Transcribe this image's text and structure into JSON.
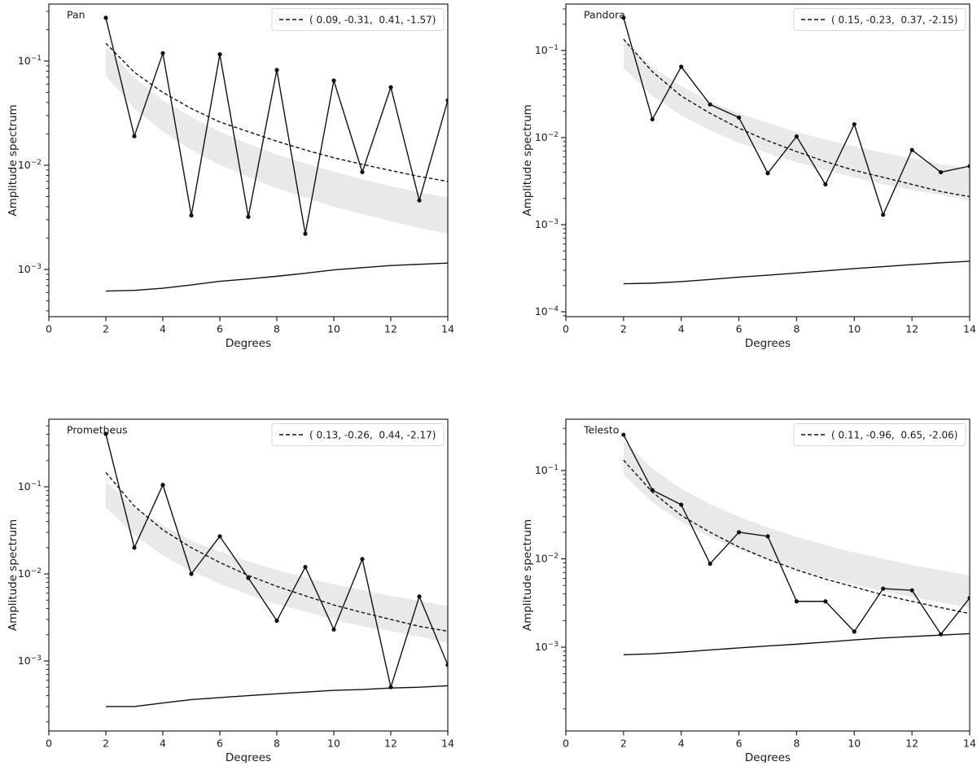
{
  "figure": {
    "background_color": "#ffffff",
    "line_color": "#111111",
    "band_color": "#e9e9e9",
    "legend_border_color": "#d6d6d6",
    "legend_background": "#ffffff",
    "xlabel": "Degrees",
    "ylabel": "Amplitude spectrum",
    "x_ticks": [
      0,
      2,
      4,
      6,
      8,
      10,
      12,
      14
    ],
    "xlim": [
      0,
      14
    ]
  },
  "chart_data": [
    {
      "type": "line",
      "id": "pan",
      "title": "Pan",
      "legend_label": "( 0.09, -0.31,  0.41, -1.57)",
      "xlabel": "Degrees",
      "ylabel": "Amplitude spectrum",
      "xlim": [
        0,
        14
      ],
      "ylim": [
        0.00035,
        0.35
      ],
      "ytick_exponents": [
        -1,
        -2,
        -3
      ],
      "x": [
        2,
        3,
        4,
        5,
        6,
        7,
        8,
        9,
        10,
        11,
        12,
        13,
        14
      ],
      "amplitude": [
        0.26,
        0.019,
        0.119,
        0.0033,
        0.116,
        0.0032,
        0.082,
        0.0022,
        0.065,
        0.0086,
        0.056,
        0.0046,
        0.042
      ],
      "fit_dashed": [
        0.148,
        0.078,
        0.05,
        0.035,
        0.026,
        0.021,
        0.017,
        0.014,
        0.0118,
        0.0102,
        0.0089,
        0.0078,
        0.007
      ],
      "band_upper": [
        0.138,
        0.069,
        0.042,
        0.029,
        0.021,
        0.016,
        0.0127,
        0.0104,
        0.0087,
        0.0073,
        0.0063,
        0.0055,
        0.0049
      ],
      "band_lower": [
        0.072,
        0.035,
        0.021,
        0.014,
        0.0101,
        0.0077,
        0.006,
        0.0049,
        0.004,
        0.0034,
        0.0029,
        0.0025,
        0.0022
      ],
      "noise": [
        0.00062,
        0.00063,
        0.00066,
        0.00071,
        0.00077,
        0.00081,
        0.00086,
        0.00092,
        0.00099,
        0.00104,
        0.00109,
        0.00112,
        0.00115
      ]
    },
    {
      "type": "line",
      "id": "pandora",
      "title": "Pandora",
      "legend_label": "( 0.15, -0.23,  0.37, -2.15)",
      "xlabel": "Degrees",
      "ylabel": "Amplitude spectrum",
      "xlim": [
        0,
        14
      ],
      "ylim": [
        8.8e-05,
        0.34
      ],
      "ytick_exponents": [
        -1,
        -2,
        -3,
        -4
      ],
      "x": [
        2,
        3,
        4,
        5,
        6,
        7,
        8,
        9,
        10,
        11,
        12,
        13,
        14
      ],
      "amplitude": [
        0.238,
        0.0162,
        0.065,
        0.024,
        0.017,
        0.0039,
        0.0103,
        0.0029,
        0.0142,
        0.0013,
        0.0072,
        0.004,
        0.0047
      ],
      "fit_dashed": [
        0.135,
        0.057,
        0.03,
        0.019,
        0.0128,
        0.0092,
        0.0069,
        0.0053,
        0.0042,
        0.0035,
        0.0029,
        0.0024,
        0.0021
      ],
      "band_upper": [
        0.13,
        0.064,
        0.039,
        0.026,
        0.019,
        0.0147,
        0.0116,
        0.0095,
        0.0079,
        0.0067,
        0.0058,
        0.005,
        0.0044
      ],
      "band_lower": [
        0.063,
        0.03,
        0.018,
        0.0121,
        0.0087,
        0.0066,
        0.0052,
        0.0042,
        0.0035,
        0.0029,
        0.0025,
        0.0022,
        0.0019
      ],
      "noise": [
        0.00021,
        0.000213,
        0.000222,
        0.000235,
        0.00025,
        0.000263,
        0.000278,
        0.000295,
        0.000313,
        0.00033,
        0.000348,
        0.000365,
        0.00038
      ]
    },
    {
      "type": "line",
      "id": "prometheus",
      "title": "Prometheus",
      "legend_label": "( 0.13, -0.26,  0.44, -2.17)",
      "xlabel": "Degrees",
      "ylabel": "Amplitude spectrum",
      "xlim": [
        0,
        14
      ],
      "ylim": [
        0.00016,
        0.6
      ],
      "ytick_exponents": [
        -1,
        -2,
        -3
      ],
      "x": [
        2,
        3,
        4,
        5,
        6,
        7,
        8,
        9,
        10,
        11,
        12,
        13,
        14
      ],
      "amplitude": [
        0.405,
        0.02,
        0.105,
        0.01,
        0.027,
        0.009,
        0.0029,
        0.012,
        0.0023,
        0.0148,
        0.0005,
        0.0055,
        0.0009
      ],
      "fit_dashed": [
        0.146,
        0.06,
        0.032,
        0.02,
        0.0135,
        0.0096,
        0.0072,
        0.0056,
        0.0044,
        0.0036,
        0.003,
        0.0025,
        0.0022
      ],
      "band_upper": [
        0.115,
        0.058,
        0.036,
        0.024,
        0.018,
        0.0139,
        0.0111,
        0.0091,
        0.0076,
        0.0065,
        0.0056,
        0.0049,
        0.0043
      ],
      "band_lower": [
        0.058,
        0.028,
        0.0162,
        0.0108,
        0.0077,
        0.0058,
        0.0045,
        0.0037,
        0.003,
        0.0025,
        0.0022,
        0.0019,
        0.0016
      ],
      "noise": [
        0.0003,
        0.0003,
        0.00033,
        0.00036,
        0.00038,
        0.0004,
        0.00042,
        0.00044,
        0.00046,
        0.00047,
        0.00049,
        0.0005,
        0.00052
      ]
    },
    {
      "type": "line",
      "id": "telesto",
      "title": "Telesto",
      "legend_label": "( 0.11, -0.96,  0.65, -2.06)",
      "xlabel": "Degrees",
      "ylabel": "Amplitude spectrum",
      "xlim": [
        0,
        14
      ],
      "ylim": [
        0.00011,
        0.39
      ],
      "ytick_exponents": [
        -1,
        -2,
        -3
      ],
      "x": [
        2,
        3,
        4,
        5,
        6,
        7,
        8,
        9,
        10,
        11,
        12,
        13,
        14
      ],
      "amplitude": [
        0.254,
        0.06,
        0.041,
        0.0088,
        0.02,
        0.018,
        0.0033,
        0.0033,
        0.0015,
        0.0046,
        0.0044,
        0.0014,
        0.0036
      ],
      "fit_dashed": [
        0.131,
        0.057,
        0.031,
        0.02,
        0.0136,
        0.0099,
        0.0075,
        0.0059,
        0.0048,
        0.0039,
        0.0033,
        0.0028,
        0.0024
      ],
      "band_upper": [
        0.218,
        0.105,
        0.062,
        0.0415,
        0.03,
        0.0226,
        0.0177,
        0.0143,
        0.0118,
        0.01,
        0.0085,
        0.0074,
        0.0065
      ],
      "band_lower": [
        0.09,
        0.0437,
        0.0262,
        0.0176,
        0.0128,
        0.0097,
        0.0076,
        0.0062,
        0.0051,
        0.0043,
        0.0037,
        0.0032,
        0.0028
      ],
      "noise": [
        0.00082,
        0.00084,
        0.00088,
        0.00093,
        0.00098,
        0.00103,
        0.00108,
        0.00114,
        0.00121,
        0.00127,
        0.00132,
        0.00137,
        0.00142
      ]
    }
  ]
}
